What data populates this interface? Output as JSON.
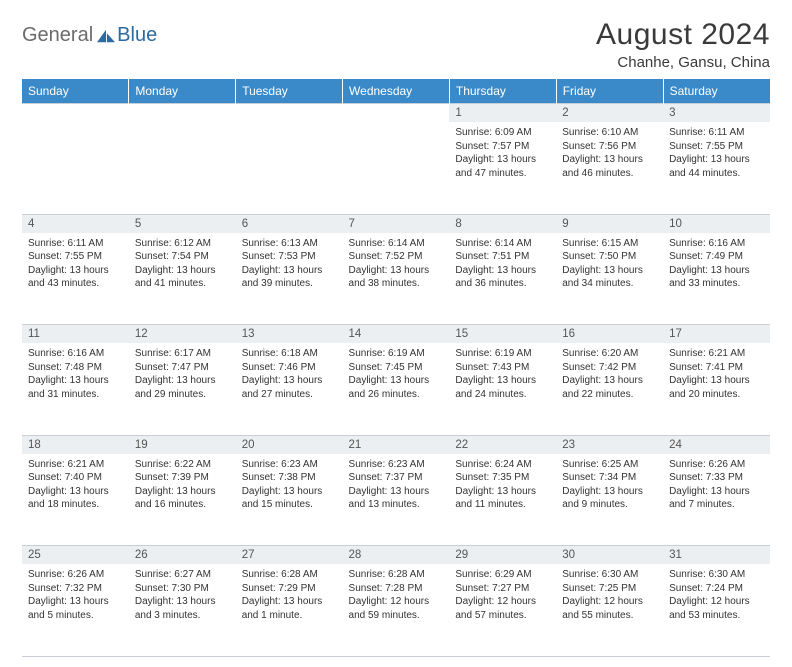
{
  "brand": {
    "a": "General",
    "b": "Blue"
  },
  "title": "August 2024",
  "location": "Chanhe, Gansu, China",
  "colors": {
    "header_bg": "#3a8ac9",
    "header_text": "#ffffff",
    "daynum_bg": "#eceff2",
    "border": "#c8ced4",
    "text": "#333333",
    "logo_gray": "#6b6b6b",
    "logo_blue": "#2c6aa0"
  },
  "weekdays": [
    "Sunday",
    "Monday",
    "Tuesday",
    "Wednesday",
    "Thursday",
    "Friday",
    "Saturday"
  ],
  "weeks": [
    [
      null,
      null,
      null,
      null,
      {
        "n": "1",
        "sr": "Sunrise: 6:09 AM",
        "ss": "Sunset: 7:57 PM",
        "d1": "Daylight: 13 hours",
        "d2": "and 47 minutes."
      },
      {
        "n": "2",
        "sr": "Sunrise: 6:10 AM",
        "ss": "Sunset: 7:56 PM",
        "d1": "Daylight: 13 hours",
        "d2": "and 46 minutes."
      },
      {
        "n": "3",
        "sr": "Sunrise: 6:11 AM",
        "ss": "Sunset: 7:55 PM",
        "d1": "Daylight: 13 hours",
        "d2": "and 44 minutes."
      }
    ],
    [
      {
        "n": "4",
        "sr": "Sunrise: 6:11 AM",
        "ss": "Sunset: 7:55 PM",
        "d1": "Daylight: 13 hours",
        "d2": "and 43 minutes."
      },
      {
        "n": "5",
        "sr": "Sunrise: 6:12 AM",
        "ss": "Sunset: 7:54 PM",
        "d1": "Daylight: 13 hours",
        "d2": "and 41 minutes."
      },
      {
        "n": "6",
        "sr": "Sunrise: 6:13 AM",
        "ss": "Sunset: 7:53 PM",
        "d1": "Daylight: 13 hours",
        "d2": "and 39 minutes."
      },
      {
        "n": "7",
        "sr": "Sunrise: 6:14 AM",
        "ss": "Sunset: 7:52 PM",
        "d1": "Daylight: 13 hours",
        "d2": "and 38 minutes."
      },
      {
        "n": "8",
        "sr": "Sunrise: 6:14 AM",
        "ss": "Sunset: 7:51 PM",
        "d1": "Daylight: 13 hours",
        "d2": "and 36 minutes."
      },
      {
        "n": "9",
        "sr": "Sunrise: 6:15 AM",
        "ss": "Sunset: 7:50 PM",
        "d1": "Daylight: 13 hours",
        "d2": "and 34 minutes."
      },
      {
        "n": "10",
        "sr": "Sunrise: 6:16 AM",
        "ss": "Sunset: 7:49 PM",
        "d1": "Daylight: 13 hours",
        "d2": "and 33 minutes."
      }
    ],
    [
      {
        "n": "11",
        "sr": "Sunrise: 6:16 AM",
        "ss": "Sunset: 7:48 PM",
        "d1": "Daylight: 13 hours",
        "d2": "and 31 minutes."
      },
      {
        "n": "12",
        "sr": "Sunrise: 6:17 AM",
        "ss": "Sunset: 7:47 PM",
        "d1": "Daylight: 13 hours",
        "d2": "and 29 minutes."
      },
      {
        "n": "13",
        "sr": "Sunrise: 6:18 AM",
        "ss": "Sunset: 7:46 PM",
        "d1": "Daylight: 13 hours",
        "d2": "and 27 minutes."
      },
      {
        "n": "14",
        "sr": "Sunrise: 6:19 AM",
        "ss": "Sunset: 7:45 PM",
        "d1": "Daylight: 13 hours",
        "d2": "and 26 minutes."
      },
      {
        "n": "15",
        "sr": "Sunrise: 6:19 AM",
        "ss": "Sunset: 7:43 PM",
        "d1": "Daylight: 13 hours",
        "d2": "and 24 minutes."
      },
      {
        "n": "16",
        "sr": "Sunrise: 6:20 AM",
        "ss": "Sunset: 7:42 PM",
        "d1": "Daylight: 13 hours",
        "d2": "and 22 minutes."
      },
      {
        "n": "17",
        "sr": "Sunrise: 6:21 AM",
        "ss": "Sunset: 7:41 PM",
        "d1": "Daylight: 13 hours",
        "d2": "and 20 minutes."
      }
    ],
    [
      {
        "n": "18",
        "sr": "Sunrise: 6:21 AM",
        "ss": "Sunset: 7:40 PM",
        "d1": "Daylight: 13 hours",
        "d2": "and 18 minutes."
      },
      {
        "n": "19",
        "sr": "Sunrise: 6:22 AM",
        "ss": "Sunset: 7:39 PM",
        "d1": "Daylight: 13 hours",
        "d2": "and 16 minutes."
      },
      {
        "n": "20",
        "sr": "Sunrise: 6:23 AM",
        "ss": "Sunset: 7:38 PM",
        "d1": "Daylight: 13 hours",
        "d2": "and 15 minutes."
      },
      {
        "n": "21",
        "sr": "Sunrise: 6:23 AM",
        "ss": "Sunset: 7:37 PM",
        "d1": "Daylight: 13 hours",
        "d2": "and 13 minutes."
      },
      {
        "n": "22",
        "sr": "Sunrise: 6:24 AM",
        "ss": "Sunset: 7:35 PM",
        "d1": "Daylight: 13 hours",
        "d2": "and 11 minutes."
      },
      {
        "n": "23",
        "sr": "Sunrise: 6:25 AM",
        "ss": "Sunset: 7:34 PM",
        "d1": "Daylight: 13 hours",
        "d2": "and 9 minutes."
      },
      {
        "n": "24",
        "sr": "Sunrise: 6:26 AM",
        "ss": "Sunset: 7:33 PM",
        "d1": "Daylight: 13 hours",
        "d2": "and 7 minutes."
      }
    ],
    [
      {
        "n": "25",
        "sr": "Sunrise: 6:26 AM",
        "ss": "Sunset: 7:32 PM",
        "d1": "Daylight: 13 hours",
        "d2": "and 5 minutes."
      },
      {
        "n": "26",
        "sr": "Sunrise: 6:27 AM",
        "ss": "Sunset: 7:30 PM",
        "d1": "Daylight: 13 hours",
        "d2": "and 3 minutes."
      },
      {
        "n": "27",
        "sr": "Sunrise: 6:28 AM",
        "ss": "Sunset: 7:29 PM",
        "d1": "Daylight: 13 hours",
        "d2": "and 1 minute."
      },
      {
        "n": "28",
        "sr": "Sunrise: 6:28 AM",
        "ss": "Sunset: 7:28 PM",
        "d1": "Daylight: 12 hours",
        "d2": "and 59 minutes."
      },
      {
        "n": "29",
        "sr": "Sunrise: 6:29 AM",
        "ss": "Sunset: 7:27 PM",
        "d1": "Daylight: 12 hours",
        "d2": "and 57 minutes."
      },
      {
        "n": "30",
        "sr": "Sunrise: 6:30 AM",
        "ss": "Sunset: 7:25 PM",
        "d1": "Daylight: 12 hours",
        "d2": "and 55 minutes."
      },
      {
        "n": "31",
        "sr": "Sunrise: 6:30 AM",
        "ss": "Sunset: 7:24 PM",
        "d1": "Daylight: 12 hours",
        "d2": "and 53 minutes."
      }
    ]
  ]
}
